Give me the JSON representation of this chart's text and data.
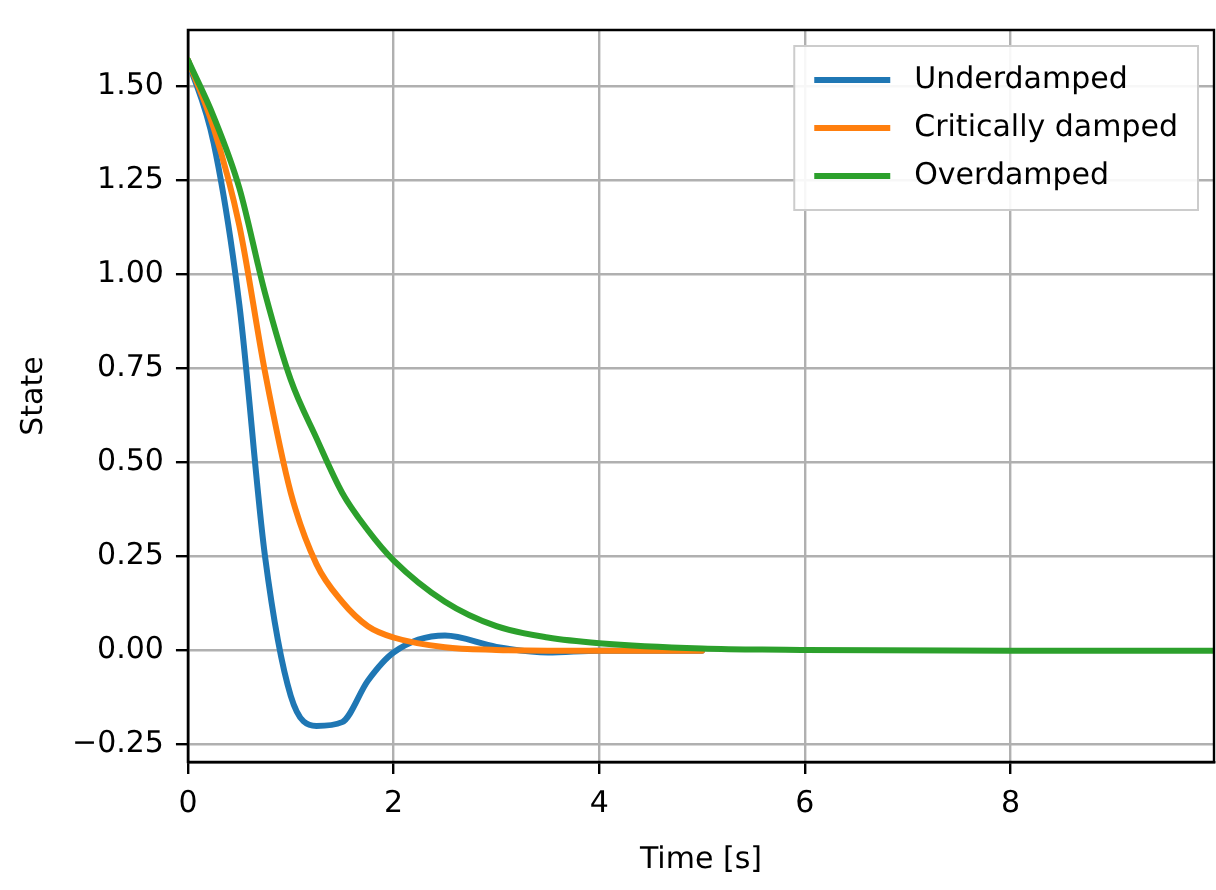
{
  "chart_data": {
    "type": "line",
    "xlabel": "Time [s]",
    "ylabel": "State",
    "xlim": [
      0,
      9.98
    ],
    "ylim": [
      -0.296,
      1.65
    ],
    "xticks": [
      0,
      2,
      4,
      6,
      8
    ],
    "yticks": [
      {
        "value": -0.25,
        "label": "−0.25"
      },
      {
        "value": 0,
        "label": "0.00"
      },
      {
        "value": 0.25,
        "label": "0.25"
      },
      {
        "value": 0.5,
        "label": "0.50"
      },
      {
        "value": 0.75,
        "label": "0.75"
      },
      {
        "value": 1,
        "label": "1.00"
      },
      {
        "value": 1.25,
        "label": "1.25"
      },
      {
        "value": 1.5,
        "label": "1.50"
      }
    ],
    "x": [
      0,
      0.25,
      0.5,
      0.75,
      1,
      1.25,
      1.5,
      1.75,
      2,
      2.5,
      3,
      3.5,
      4,
      5,
      6,
      8,
      9.98
    ],
    "series": [
      {
        "name": "Underdamped",
        "color": "#1f77b4",
        "values": [
          1.57,
          1.35,
          0.92,
          0.25,
          -0.12,
          -0.2,
          -0.19,
          -0.08,
          -0.005,
          0.04,
          0.01,
          -0.005,
          0,
          0,
          null,
          null,
          null
        ]
      },
      {
        "name": "Critically damped",
        "color": "#ff7f0e",
        "values": [
          1.57,
          1.39,
          1.13,
          0.74,
          0.42,
          0.23,
          0.13,
          0.065,
          0.035,
          0.009,
          0.002,
          0,
          0,
          0,
          null,
          null,
          null
        ]
      },
      {
        "name": "Overdamped",
        "color": "#2ca02c",
        "values": [
          1.57,
          1.42,
          1.23,
          0.95,
          0.72,
          0.565,
          0.42,
          0.32,
          0.24,
          0.13,
          0.065,
          0.035,
          0.02,
          0.006,
          0.002,
          0,
          0
        ]
      }
    ],
    "grid": true,
    "legend": "top right",
    "marker": "none",
    "line_style": "solid"
  }
}
